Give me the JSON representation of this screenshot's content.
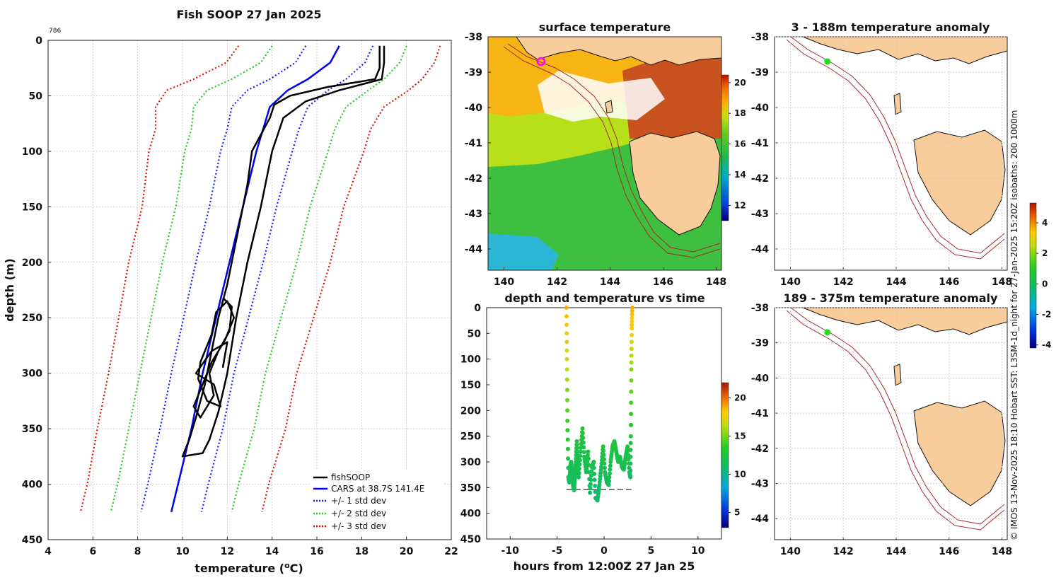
{
  "figure": {
    "station_id": "786",
    "credit": "© IMOS 13-Nov-2025 18:10 Hobart SST: L3SM-1d_night for 27-Jan-2025 15:20Z isobaths: 200  1000m"
  },
  "colors": {
    "fish": "#000000",
    "cars": "#0000ee",
    "sd1": "#1a1aff",
    "sd2": "#22cc22",
    "sd3": "#dd1100",
    "land": "#f9cc9b",
    "isobath": "#a52a2a",
    "grid": "#c8c8c8",
    "marker_magenta": "#ff00ff",
    "marker_green": "#22dd22"
  },
  "chart_data": [
    {
      "id": "profile",
      "type": "line",
      "title": "Fish SOOP 27 Jan 2025",
      "xlabel": "temperature (",
      "xlabel_sup": "o",
      "xlabel_unit": "C)",
      "ylabel": "depth (m)",
      "xlim": [
        4,
        22
      ],
      "ylim": [
        450,
        0
      ],
      "xticks": [
        4,
        6,
        8,
        10,
        12,
        14,
        16,
        18,
        20,
        22
      ],
      "yticks": [
        0,
        50,
        100,
        150,
        200,
        250,
        300,
        350,
        400,
        450
      ],
      "legend": [
        "fishSOOP",
        "CARS at 38.7S 141.4E",
        "+/- 1 std dev",
        "+/- 2 std dev",
        "+/- 3 std dev"
      ],
      "depth": [
        5,
        20,
        35,
        45,
        60,
        80,
        100,
        150,
        200,
        250,
        300,
        350,
        400,
        425
      ],
      "cars_mean": [
        17.0,
        16.6,
        15.6,
        14.7,
        13.9,
        13.6,
        13.3,
        12.7,
        12.1,
        11.5,
        10.9,
        10.4,
        9.8,
        9.5
      ],
      "std1": [
        1.5,
        1.55,
        1.7,
        1.8,
        1.7,
        1.6,
        1.6,
        1.5,
        1.5,
        1.45,
        1.4,
        1.4,
        1.35,
        1.35
      ],
      "fish_down": [
        [
          18.8,
          5
        ],
        [
          18.8,
          25
        ],
        [
          18.6,
          35
        ],
        [
          16.5,
          42
        ],
        [
          14.8,
          50
        ],
        [
          14.1,
          58
        ],
        [
          13.9,
          70
        ],
        [
          13.5,
          85
        ],
        [
          13.1,
          100
        ],
        [
          12.9,
          130
        ],
        [
          12.6,
          160
        ],
        [
          12.3,
          190
        ],
        [
          12.0,
          220
        ],
        [
          11.6,
          250
        ],
        [
          11.3,
          280
        ],
        [
          11.0,
          310
        ],
        [
          10.6,
          340
        ],
        [
          10.3,
          360
        ],
        [
          10.0,
          375
        ],
        [
          10.9,
          372
        ],
        [
          11.2,
          360
        ],
        [
          11.6,
          335
        ],
        [
          12.0,
          300
        ],
        [
          12.4,
          250
        ],
        [
          12.9,
          200
        ],
        [
          13.5,
          150
        ],
        [
          14.0,
          100
        ],
        [
          14.5,
          70
        ],
        [
          15.5,
          55
        ],
        [
          17.0,
          45
        ],
        [
          18.9,
          35
        ],
        [
          19.0,
          20
        ],
        [
          19.0,
          5
        ]
      ],
      "fish_loops": [
        [
          11.8,
          232
        ],
        [
          12.2,
          240
        ],
        [
          12.1,
          262
        ],
        [
          11.6,
          280
        ],
        [
          11.2,
          300
        ],
        [
          11.4,
          320
        ],
        [
          10.8,
          340
        ],
        [
          10.5,
          330
        ],
        [
          10.9,
          310
        ],
        [
          11.3,
          290
        ],
        [
          11.9,
          270
        ],
        [
          12.3,
          250
        ],
        [
          12.0,
          235
        ],
        [
          11.5,
          245
        ],
        [
          11.3,
          265
        ],
        [
          10.8,
          290
        ],
        [
          10.7,
          305
        ],
        [
          11.1,
          325
        ],
        [
          11.7,
          330
        ],
        [
          11.4,
          310
        ],
        [
          10.6,
          300
        ],
        [
          11.3,
          280
        ],
        [
          12.0,
          272
        ],
        [
          11.8,
          295
        ]
      ]
    },
    {
      "id": "sst_map",
      "type": "heatmap",
      "title": "surface temperature",
      "xlim": [
        139.4,
        148.2
      ],
      "ylim": [
        -44.6,
        -38
      ],
      "xticks": [
        140,
        142,
        144,
        146,
        148
      ],
      "yticks": [
        -38,
        -39,
        -40,
        -41,
        -42,
        -43,
        -44
      ],
      "colorbar_range": [
        11,
        20.5
      ],
      "colorbar_ticks": [
        12,
        14,
        16,
        18,
        20
      ],
      "marker": [
        141.4,
        -38.7
      ]
    },
    {
      "id": "depth_time",
      "type": "scatter",
      "title": "depth and temperature vs time",
      "xlabel": "hours from 12:00Z 27 Jan 25",
      "xlim": [
        -12.5,
        12.5
      ],
      "ylim": [
        450,
        0
      ],
      "xticks": [
        -10,
        -5,
        0,
        5,
        10
      ],
      "yticks": [
        0,
        50,
        100,
        150,
        200,
        250,
        300,
        350,
        400,
        450
      ],
      "colorbar_range": [
        3,
        22
      ],
      "colorbar_ticks": [
        5,
        10,
        15,
        20
      ],
      "bottom_depth": 354,
      "bottom_x": [
        -4,
        3
      ],
      "track_hours": [
        -4.0,
        -3.95,
        -3.9,
        -3.8,
        -3.7,
        -3.6,
        -3.5,
        -3.4,
        -3.3,
        -3.2,
        -3.1,
        -3.0,
        -2.9,
        -2.8,
        -2.7,
        -2.5,
        -2.3,
        -2.1,
        -1.9,
        -1.7,
        -1.5,
        -1.3,
        -1.1,
        -0.9,
        -0.7,
        -0.5,
        -0.3,
        -0.1,
        0.1,
        0.3,
        0.5,
        0.7,
        0.9,
        1.1,
        1.3,
        1.5,
        1.7,
        1.9,
        2.1,
        2.3,
        2.5,
        2.7,
        2.8,
        2.85,
        2.9,
        2.95,
        3.0
      ],
      "track_depth": [
        0,
        100,
        220,
        330,
        340,
        310,
        300,
        320,
        345,
        355,
        330,
        300,
        260,
        300,
        330,
        280,
        235,
        290,
        320,
        280,
        360,
        310,
        300,
        370,
        375,
        345,
        310,
        270,
        320,
        340,
        345,
        300,
        270,
        260,
        280,
        300,
        290,
        310,
        315,
        290,
        270,
        320,
        330,
        250,
        120,
        40,
        0
      ],
      "track_temp": [
        19,
        17,
        14,
        12,
        12,
        12.3,
        12.4,
        12.1,
        11.9,
        11.8,
        12,
        12.4,
        12.9,
        12.4,
        12,
        12.6,
        13,
        12.5,
        12.1,
        12.6,
        11.7,
        12.3,
        12.3,
        11.5,
        11.4,
        11.8,
        12.3,
        12.8,
        12.2,
        12,
        11.9,
        12.4,
        12.8,
        12.9,
        12.7,
        12.4,
        12.5,
        12.3,
        12.2,
        12.5,
        12.7,
        12.1,
        12,
        13,
        15.5,
        18,
        19
      ]
    },
    {
      "id": "anom_shallow",
      "type": "heatmap",
      "title": "3 - 188m temperature anomaly",
      "xlim": [
        139.4,
        148.2
      ],
      "ylim": [
        -44.6,
        -38
      ],
      "xticks": [
        140,
        142,
        144,
        146,
        148
      ],
      "yticks": [
        -38,
        -39,
        -40,
        -41,
        -42,
        -43,
        -44
      ],
      "colorbar_range": [
        -4.2,
        5.3
      ],
      "colorbar_ticks": [
        -4,
        -2,
        0,
        2,
        4
      ],
      "marker": [
        141.4,
        -38.7
      ]
    },
    {
      "id": "anom_deep",
      "type": "heatmap",
      "title": "189 - 375m temperature anomaly",
      "xlim": [
        139.4,
        148.2
      ],
      "ylim": [
        -44.6,
        -38
      ],
      "xticks": [
        140,
        142,
        144,
        146,
        148
      ],
      "yticks": [
        -38,
        -39,
        -40,
        -41,
        -42,
        -43,
        -44
      ],
      "marker": [
        141.4,
        -38.7
      ]
    }
  ]
}
